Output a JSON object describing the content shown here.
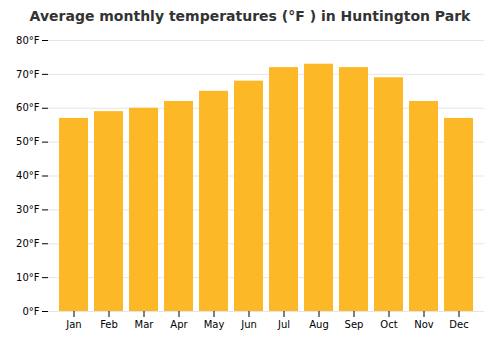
{
  "chart_data": {
    "type": "bar",
    "title": "Average monthly temperatures (°F ) in Huntington Park",
    "categories": [
      "Jan",
      "Feb",
      "Mar",
      "Apr",
      "May",
      "Jun",
      "Jul",
      "Aug",
      "Sep",
      "Oct",
      "Nov",
      "Dec"
    ],
    "values": [
      57,
      59,
      60,
      62,
      65,
      68,
      72,
      73,
      72,
      69,
      62,
      57
    ],
    "color": "#FDB827",
    "ylim": [
      0,
      80
    ],
    "yticks": [
      {
        "value": 0,
        "label": "0°F"
      },
      {
        "value": 10,
        "label": "10°F"
      },
      {
        "value": 20,
        "label": "20°F"
      },
      {
        "value": 30,
        "label": "30°F"
      },
      {
        "value": 40,
        "label": "40°F"
      },
      {
        "value": 50,
        "label": "50°F"
      },
      {
        "value": 60,
        "label": "60°F"
      },
      {
        "value": 70,
        "label": "70°F"
      },
      {
        "value": 80,
        "label": "80°F"
      }
    ],
    "grid": true
  }
}
